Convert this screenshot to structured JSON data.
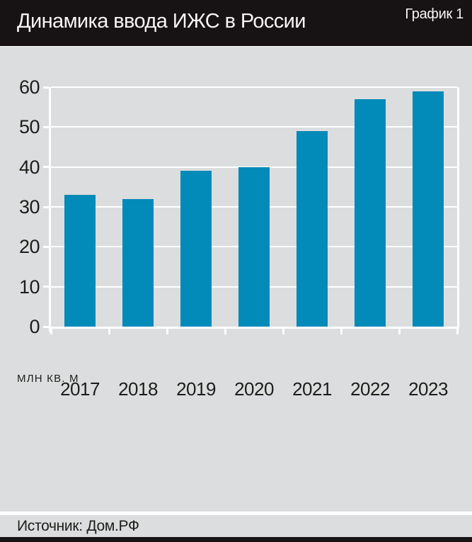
{
  "header": {
    "title": "Динамика ввода ИЖС в России",
    "badge": "График 1"
  },
  "chart_data": {
    "type": "bar",
    "title": "Динамика ввода ИЖС в России",
    "categories": [
      "2017",
      "2018",
      "2019",
      "2020",
      "2021",
      "2022",
      "2023"
    ],
    "values": [
      33,
      32,
      39,
      40,
      49,
      57,
      59
    ],
    "unit_label": "млн кв. м",
    "xlabel": "",
    "ylabel": "млн кв. м",
    "ylim": [
      0,
      60
    ],
    "yticks": [
      0,
      10,
      20,
      30,
      40,
      50,
      60
    ],
    "grid": "horizontal",
    "legend": "none",
    "bar_color": "#028ab8",
    "background_color": "#dcddde",
    "gridline_color": "#ffffff"
  },
  "footer": {
    "source": "Источник: Дом.РФ"
  },
  "colors": {
    "header_bg": "#171314",
    "panel_bg": "#dcddde",
    "bar": "#028ab8",
    "grid": "#ffffff",
    "text": "#1d1d1b"
  }
}
